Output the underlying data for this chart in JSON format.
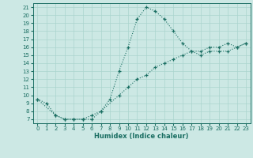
{
  "xlabel": "Humidex (Indice chaleur)",
  "bg_color": "#cce8e4",
  "grid_color": "#aad4ce",
  "line_color": "#1a6e62",
  "xlim": [
    -0.5,
    23.5
  ],
  "ylim": [
    6.5,
    21.5
  ],
  "xticks": [
    0,
    1,
    2,
    3,
    4,
    5,
    6,
    7,
    8,
    9,
    10,
    11,
    12,
    13,
    14,
    15,
    16,
    17,
    18,
    19,
    20,
    21,
    22,
    23
  ],
  "yticks": [
    7,
    8,
    9,
    10,
    11,
    12,
    13,
    14,
    15,
    16,
    17,
    18,
    19,
    20,
    21
  ],
  "line1_x": [
    0,
    1,
    2,
    3,
    4,
    5,
    6,
    7,
    8,
    9,
    10,
    11,
    12,
    13,
    14,
    15,
    16,
    17,
    18,
    19,
    20,
    21,
    22,
    23
  ],
  "line1_y": [
    9.5,
    9.0,
    7.5,
    7.0,
    7.0,
    7.0,
    7.0,
    8.0,
    9.5,
    13.0,
    16.0,
    19.5,
    21.0,
    20.5,
    19.5,
    18.0,
    16.5,
    15.5,
    15.0,
    15.5,
    15.5,
    15.5,
    16.0,
    16.5
  ],
  "line2_x": [
    0,
    2,
    3,
    4,
    5,
    6,
    7,
    9,
    10,
    11,
    12,
    13,
    14,
    15,
    16,
    17,
    18,
    19,
    20,
    21,
    22,
    23
  ],
  "line2_y": [
    9.5,
    7.5,
    7.0,
    7.0,
    7.0,
    7.5,
    8.0,
    10.0,
    11.0,
    12.0,
    12.5,
    13.5,
    14.0,
    14.5,
    15.0,
    15.5,
    15.5,
    16.0,
    16.0,
    16.5,
    16.0,
    16.5
  ]
}
